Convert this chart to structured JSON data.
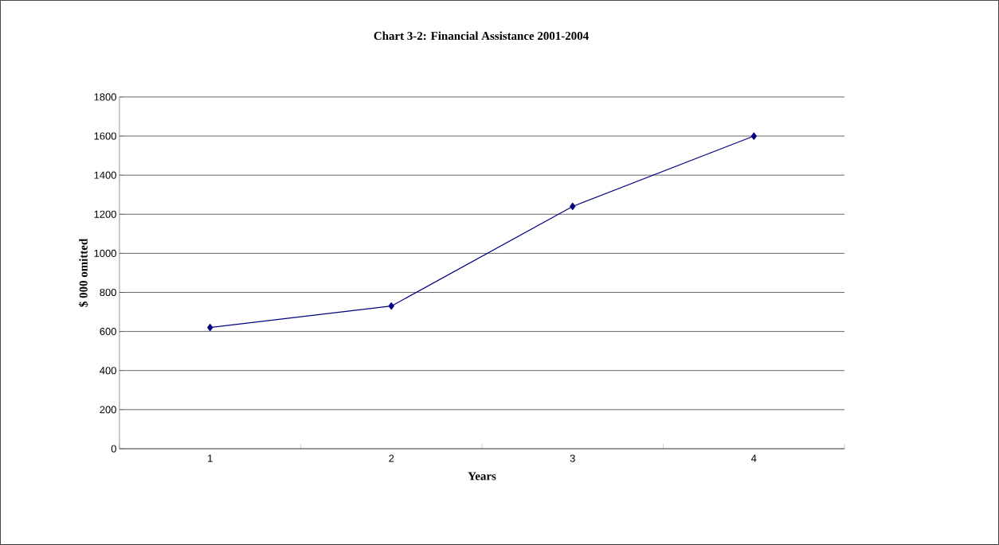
{
  "chart_data": {
    "type": "line",
    "title": "Chart 3-2: Financial Assistance 2001-2004",
    "xlabel": "Years",
    "ylabel": "$ 000 omitted",
    "categories": [
      "1",
      "2",
      "3",
      "4"
    ],
    "series": [
      {
        "color": "#000080",
        "values": [
          620,
          730,
          1240,
          1600
        ]
      }
    ],
    "ylim": [
      0,
      1800
    ],
    "yticks": [
      0,
      200,
      400,
      600,
      800,
      1000,
      1200,
      1400,
      1600,
      1800
    ],
    "grid": "y",
    "marker": "diamond",
    "line_style": "solid"
  }
}
